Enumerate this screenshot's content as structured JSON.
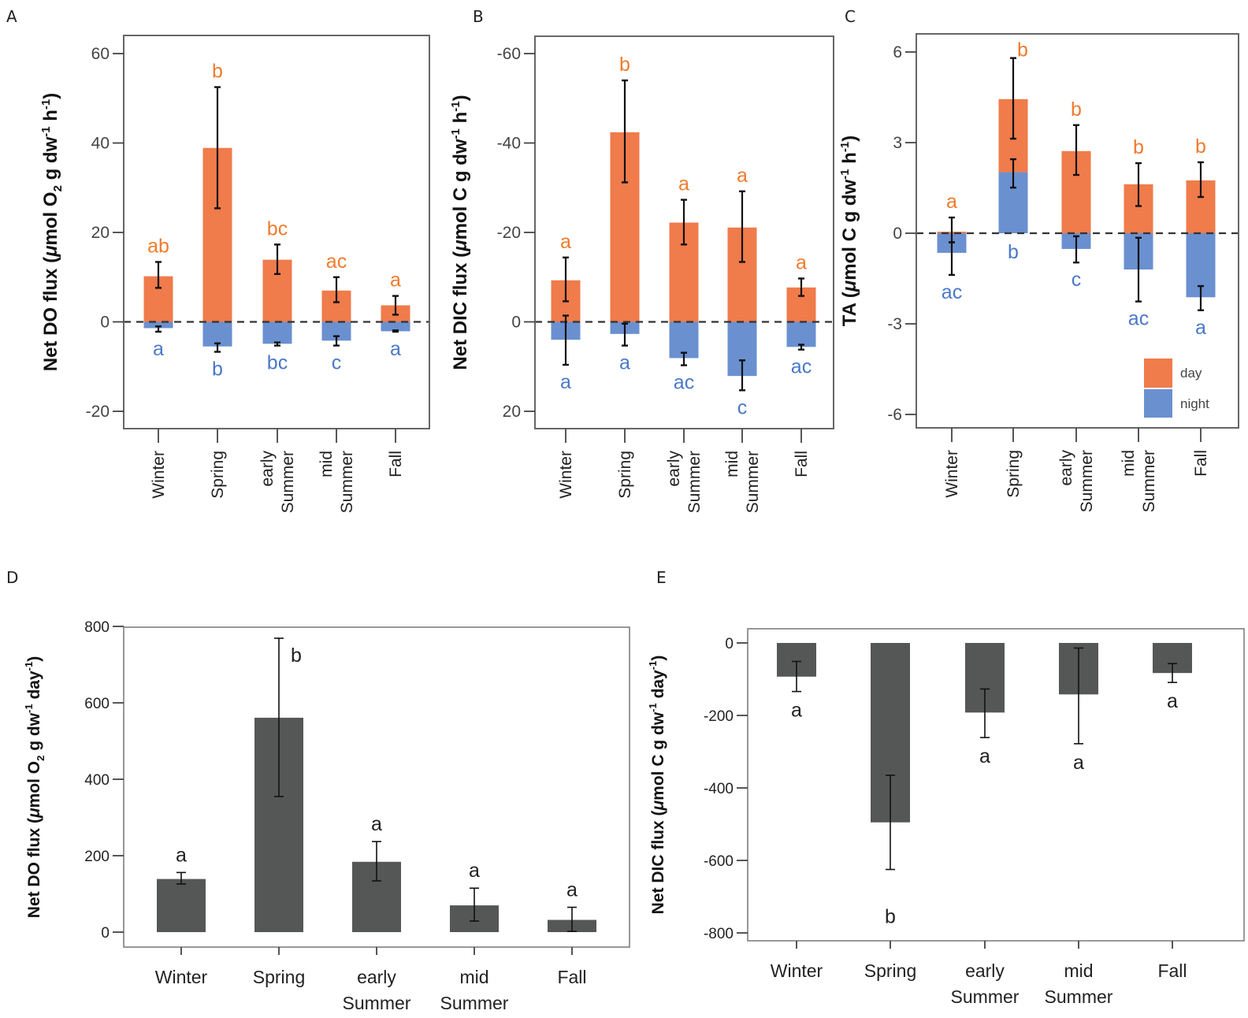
{
  "colors": {
    "day": "#F07B4B",
    "night": "#6A90D0",
    "bar_dark": "#555756",
    "day_text": "#F07B2E",
    "night_text": "#4A78C8"
  },
  "chart_data": [
    {
      "panel": "A",
      "type": "bar",
      "stacked": true,
      "categories": [
        "Winter",
        "Spring",
        "early Summer",
        "mid Summer",
        "Fall"
      ],
      "ylabel": "Net DO flux (μmol O2 g dw-1 h-1)",
      "ylim": [
        -24,
        64
      ],
      "yticks": [
        60,
        40,
        20,
        0,
        -20
      ],
      "inverted": false,
      "zero_line": "dashed",
      "series": [
        {
          "name": "day",
          "values": [
            10.2,
            38.9,
            13.9,
            7.0,
            3.7
          ],
          "err_high": [
            13.4,
            52.5,
            17.3,
            10.0,
            5.8
          ],
          "err_low": [
            7.6,
            25.4,
            10.7,
            4.4,
            1.6
          ],
          "letters": [
            "ab",
            "b",
            "bc",
            "ac",
            "a"
          ]
        },
        {
          "name": "night",
          "values": [
            -1.4,
            -5.5,
            -4.9,
            -4.2,
            -2.1
          ],
          "err_high": [
            -1.0,
            -4.8,
            -4.6,
            -3.2,
            -1.9
          ],
          "err_low": [
            -2.2,
            -6.7,
            -5.3,
            -5.3,
            -2.2
          ],
          "letters": [
            "a",
            "b",
            "bc",
            "c",
            "a"
          ]
        }
      ]
    },
    {
      "panel": "B",
      "type": "bar",
      "stacked": true,
      "categories": [
        "Winter",
        "Spring",
        "early Summer",
        "mid Summer",
        "Fall"
      ],
      "ylabel": "Net DIC flux (μmol C g dw-1 h-1)",
      "ylim": [
        -64,
        24
      ],
      "yticks": [
        -60,
        -40,
        -20,
        0,
        20
      ],
      "inverted": true,
      "zero_line": "dashed",
      "series": [
        {
          "name": "day",
          "values": [
            -9.3,
            -42.4,
            -22.2,
            -21.1,
            -7.7
          ],
          "err_high": [
            -14.4,
            -54.0,
            -27.3,
            -29.2,
            -9.7
          ],
          "err_low": [
            -4.6,
            -31.2,
            -17.3,
            -13.4,
            -5.8
          ],
          "letters": [
            "a",
            "b",
            "a",
            "a",
            "a"
          ]
        },
        {
          "name": "night",
          "values": [
            4.0,
            2.7,
            8.1,
            12.1,
            5.6
          ],
          "err_high": [
            -1.4,
            0.4,
            6.9,
            8.6,
            5.1
          ],
          "err_low": [
            9.6,
            5.3,
            9.7,
            15.3,
            6.2
          ],
          "letters": [
            "a",
            "a",
            "ac",
            "c",
            "ac"
          ]
        }
      ]
    },
    {
      "panel": "C",
      "type": "bar",
      "stacked": true,
      "categories": [
        "Winter",
        "Spring",
        "early Summer",
        "mid Summer",
        "Fall"
      ],
      "ylabel": "TA (μmol C g dw-1 h-1)",
      "ylim": [
        -6.5,
        6.5
      ],
      "yticks": [
        6,
        3,
        0,
        -3,
        -6
      ],
      "inverted": false,
      "zero_line": "dashed",
      "legend": {
        "position": "bottom-right",
        "entries": [
          "day",
          "night"
        ]
      },
      "series": [
        {
          "name": "day",
          "values": [
            0.05,
            4.44,
            2.72,
            1.62,
            1.75
          ],
          "err_high": [
            0.52,
            5.8,
            3.58,
            2.32,
            2.35
          ],
          "err_low": [
            -0.3,
            3.13,
            1.93,
            0.9,
            1.2
          ],
          "letters": [
            "a",
            "b",
            "b",
            "b",
            "b"
          ]
        },
        {
          "name": "night",
          "values": [
            -0.65,
            2.02,
            -0.52,
            -1.2,
            -2.12
          ],
          "err_high": [
            -0.3,
            2.45,
            -0.1,
            -0.15,
            -1.75
          ],
          "err_low": [
            -1.38,
            1.51,
            -0.97,
            -2.26,
            -2.55
          ],
          "letters": [
            "ac",
            "b",
            "c",
            "ac",
            "a"
          ]
        }
      ]
    },
    {
      "panel": "D",
      "type": "bar",
      "categories": [
        "Winter",
        "Spring",
        "early Summer",
        "mid Summer",
        "Fall"
      ],
      "ylabel": "Net DO flux (μmol O2 g dw-1 day-1)",
      "ylim": [
        -40,
        800
      ],
      "yticks": [
        800,
        600,
        400,
        200,
        0
      ],
      "values": [
        139,
        561,
        184,
        70,
        32
      ],
      "err_high": [
        156,
        769,
        237,
        115,
        65
      ],
      "err_low": [
        126,
        355,
        134,
        29,
        2
      ],
      "letters": [
        "a",
        "b",
        "a",
        "a",
        "a"
      ]
    },
    {
      "panel": "E",
      "type": "bar",
      "categories": [
        "Winter",
        "Spring",
        "early Summer",
        "mid Summer",
        "Fall"
      ],
      "ylabel": "Net DIC flux (μmol C g dw-1 day-1)",
      "ylim": [
        -840,
        40
      ],
      "yticks": [
        0,
        -200,
        -400,
        -600,
        -800
      ],
      "values": [
        -93,
        -495,
        -192,
        -142,
        -83
      ],
      "err_high": [
        -51,
        -365,
        -127,
        -14,
        -57
      ],
      "err_low": [
        -134,
        -625,
        -261,
        -278,
        -109
      ],
      "letters": [
        "a",
        "b",
        "a",
        "a",
        "a"
      ]
    }
  ],
  "panel_labels": [
    "A",
    "B",
    "C",
    "D",
    "E"
  ],
  "cat_lines": [
    [
      "Winter"
    ],
    [
      "Spring"
    ],
    [
      "early",
      "Summer"
    ],
    [
      "mid",
      "Summer"
    ],
    [
      "Fall"
    ]
  ],
  "ylabels": {
    "A": {
      "main": "Net DO flux (",
      "mu": "μ",
      "rest": "mol O",
      "sub": "2",
      "rest2": " g dw",
      "sup1": "-1",
      "rest3": " h",
      "sup2": "-1",
      "end": ")"
    },
    "B": {
      "main": "Net DIC flux (",
      "mu": "μ",
      "rest": "mol C g dw",
      "sup1": "-1",
      "rest3": " h",
      "sup2": "-1",
      "end": ")"
    },
    "C": {
      "main": "TA (",
      "mu": "μ",
      "rest": "mol C g dw",
      "sup1": "-1",
      "rest3": " h",
      "sup2": "-1",
      "end": ")"
    },
    "D": {
      "main": "Net DO flux  (",
      "mu": "μ",
      "rest": "mol O",
      "sub": "2",
      "rest2": " g dw",
      "sup1": "-1",
      "rest3": " day",
      "sup2": "-1",
      "end": ")"
    },
    "E": {
      "main": "Net DIC flux  (",
      "mu": "μ",
      "rest": "mol C g dw",
      "sup1": "-1",
      "rest3": " day",
      "sup2": "-1",
      "end": ")"
    }
  },
  "legend": {
    "day": "day",
    "night": "night"
  }
}
